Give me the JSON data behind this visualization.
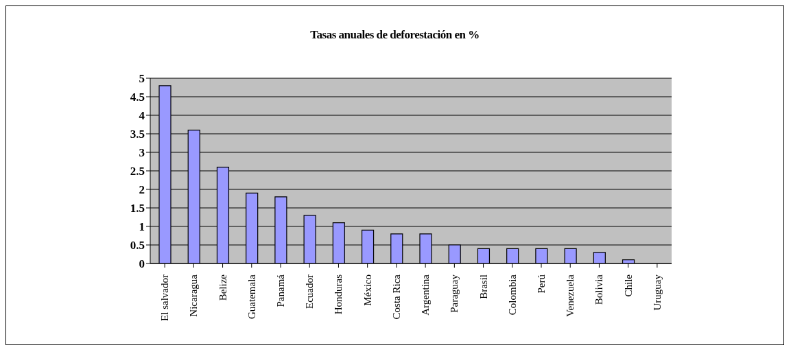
{
  "chart_data": {
    "type": "bar",
    "title": "Tasas anuales de deforestación en %",
    "categories": [
      "El salvador",
      "Nicaragua",
      "Belize",
      "Guatemala",
      "Panamá",
      "Ecuador",
      "Honduras",
      "México",
      "Costa Rica",
      "Argentina",
      "Paraguay",
      "Brasil",
      "Colombia",
      "Perú",
      "Venezuela",
      "Bolivia",
      "Chile",
      "Uruguay"
    ],
    "values": [
      4.8,
      3.6,
      2.6,
      1.9,
      1.8,
      1.3,
      1.1,
      0.9,
      0.8,
      0.8,
      0.5,
      0.4,
      0.4,
      0.4,
      0.4,
      0.3,
      0.1,
      0
    ],
    "color": "#9999ff",
    "ylim": [
      0,
      5
    ],
    "yticks": [
      0,
      0.5,
      1,
      1.5,
      2,
      2.5,
      3,
      3.5,
      4,
      4.5,
      5
    ],
    "grid": "y"
  }
}
